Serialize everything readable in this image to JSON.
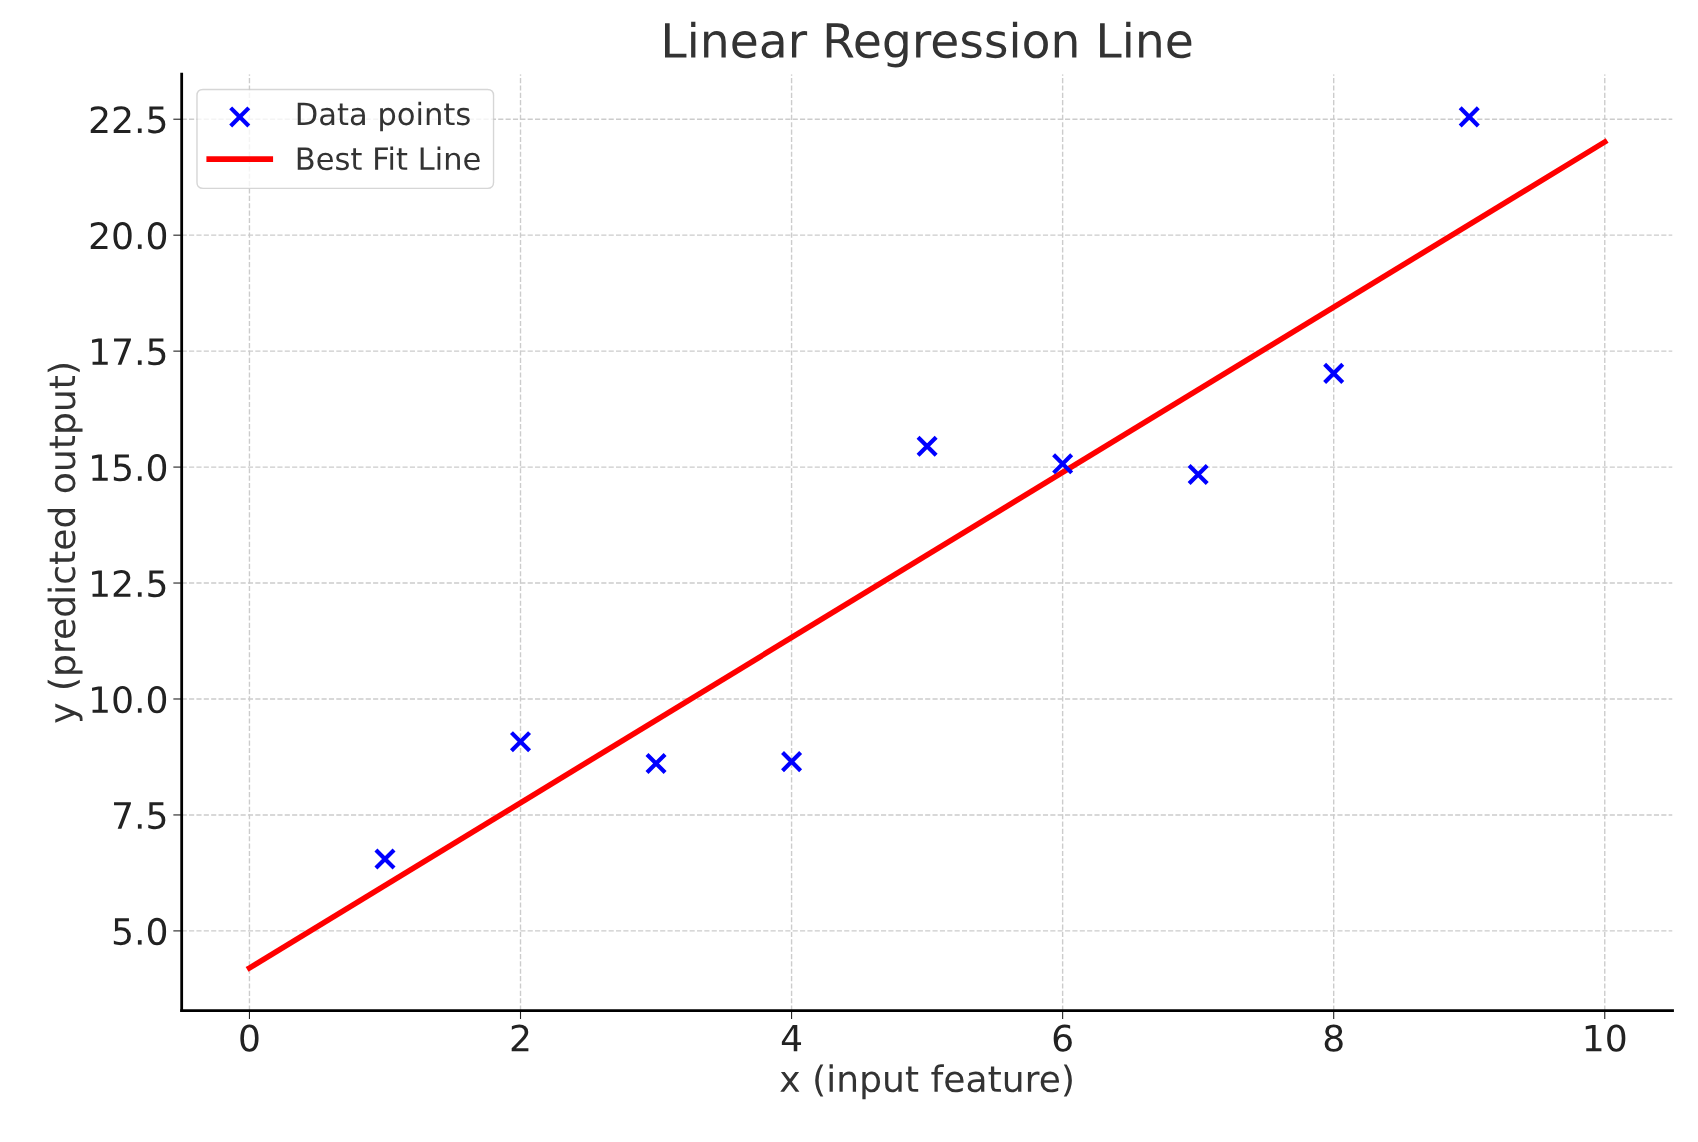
{
  "chart_data": {
    "type": "scatter",
    "title": "Linear Regression Line",
    "xlabel": "x (input feature)",
    "ylabel": "y (predicted output)",
    "series": [
      {
        "name": "Data points",
        "color": "#0000ff",
        "marker": "cross",
        "x": [
          1,
          2,
          3,
          4,
          5,
          6,
          7,
          8,
          9
        ],
        "values": [
          6.55,
          9.08,
          8.61,
          8.65,
          15.45,
          15.07,
          14.84,
          17.02,
          22.55
        ]
      },
      {
        "name": "Best Fit Line",
        "type": "line",
        "color": "#ff0000",
        "marker": "none",
        "line_style": "solid",
        "x": [
          0,
          10
        ],
        "values": [
          4.2,
          22.01
        ]
      }
    ],
    "xlim": [
      -0.5,
      10.5
    ],
    "xticks": [
      0,
      2,
      4,
      6,
      8,
      10
    ],
    "ylim": [
      3.28,
      23.47
    ],
    "yticks": [
      {
        "value": 5,
        "label": "5.0"
      },
      {
        "value": 7.5,
        "label": "7.5"
      },
      {
        "value": 10,
        "label": "10.0"
      },
      {
        "value": 12.5,
        "label": "12.5"
      },
      {
        "value": 15,
        "label": "15.0"
      },
      {
        "value": 17.5,
        "label": "17.5"
      },
      {
        "value": 20,
        "label": "20.0"
      },
      {
        "value": 22.5,
        "label": "22.5"
      }
    ],
    "grid": true,
    "legend": "top left"
  }
}
